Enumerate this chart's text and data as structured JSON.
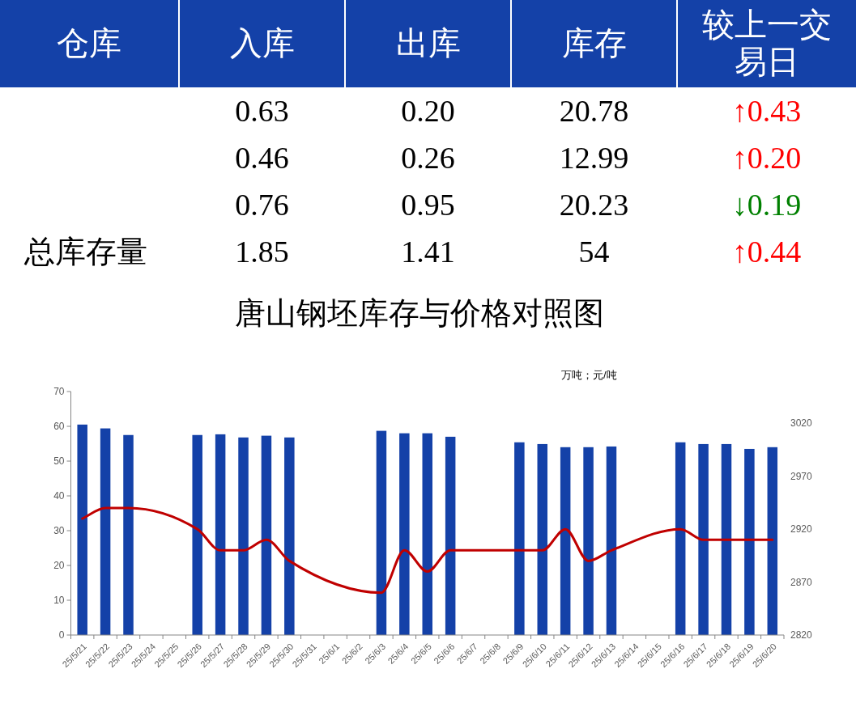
{
  "chart_data": [
    {
      "type": "other",
      "legend_title": "仓库",
      "categories": [
        "入库",
        "出库",
        "库存",
        "较上一交易日"
      ],
      "series": [
        {
          "values": [
            0.63,
            0.2,
            20.78,
            0.43
          ],
          "value_labels": [
            "0.63",
            "0.20",
            "20.78",
            "↑0.43"
          ],
          "colors": [
            "#000000",
            "#000000",
            "#000000",
            "#ff0000"
          ]
        },
        {
          "values": [
            0.46,
            0.26,
            12.99,
            0.2
          ],
          "value_labels": [
            "0.46",
            "0.26",
            "12.99",
            "↑0.20"
          ],
          "colors": [
            "#000000",
            "#000000",
            "#000000",
            "#ff0000"
          ]
        },
        {
          "values": [
            0.76,
            0.95,
            20.23,
            0.19
          ],
          "value_labels": [
            "0.76",
            "0.95",
            "20.23",
            "↓0.19"
          ],
          "colors": [
            "#000000",
            "#000000",
            "#000000",
            "#008000"
          ]
        },
        {
          "name": "总库存量",
          "values": [
            1.85,
            1.41,
            54,
            0.44
          ],
          "value_labels": [
            "1.85",
            "1.41",
            "54",
            "↑0.44"
          ],
          "colors": [
            "#000000",
            "#000000",
            "#000000",
            "#ff0000"
          ]
        }
      ]
    },
    {
      "type": "bar",
      "title": "唐山钢坯库存与价格对照图",
      "annotations": [
        "万吨；元/吨"
      ],
      "categories": [
        "25/5/21",
        "25/5/22",
        "25/5/23",
        "25/5/24",
        "25/5/25",
        "25/5/26",
        "25/5/27",
        "25/5/28",
        "25/5/29",
        "25/5/30",
        "25/5/31",
        "25/6/1",
        "25/6/2",
        "25/6/3",
        "25/6/4",
        "25/6/5",
        "25/6/6",
        "25/6/7",
        "25/6/8",
        "25/6/9",
        "25/6/10",
        "25/6/11",
        "25/6/12",
        "25/6/13",
        "25/6/14",
        "25/6/15",
        "25/6/16",
        "25/6/17",
        "25/6/18",
        "25/6/19",
        "25/6/20"
      ],
      "ylim": [
        0,
        70
      ],
      "yticks": [
        0,
        10,
        20,
        30,
        40,
        50,
        60,
        70
      ],
      "y2lim": [
        2820,
        3050
      ],
      "y2ticks": [
        2820,
        2870,
        2920,
        2970,
        3020
      ],
      "series": [
        {
          "type": "bar",
          "color": "#1441a8",
          "values": [
            60.5,
            59.4,
            57.5,
            null,
            null,
            57.5,
            57.7,
            56.8,
            57.3,
            56.8,
            null,
            null,
            null,
            58.7,
            58.0,
            58.0,
            57.0,
            null,
            null,
            55.4,
            54.9,
            54.0,
            54.0,
            54.2,
            null,
            null,
            55.4,
            54.9,
            54.9,
            53.5,
            54.0
          ]
        },
        {
          "type": "line",
          "axis": "y2",
          "color": "#c00000",
          "values": [
            2930,
            2940,
            2940,
            null,
            null,
            2920,
            2900,
            2900,
            2910,
            2890,
            null,
            null,
            null,
            2860,
            2900,
            2880,
            2900,
            null,
            null,
            2900,
            2900,
            2920,
            2890,
            2900,
            null,
            null,
            2920,
            2910,
            2910,
            2910,
            2910
          ]
        }
      ]
    }
  ]
}
